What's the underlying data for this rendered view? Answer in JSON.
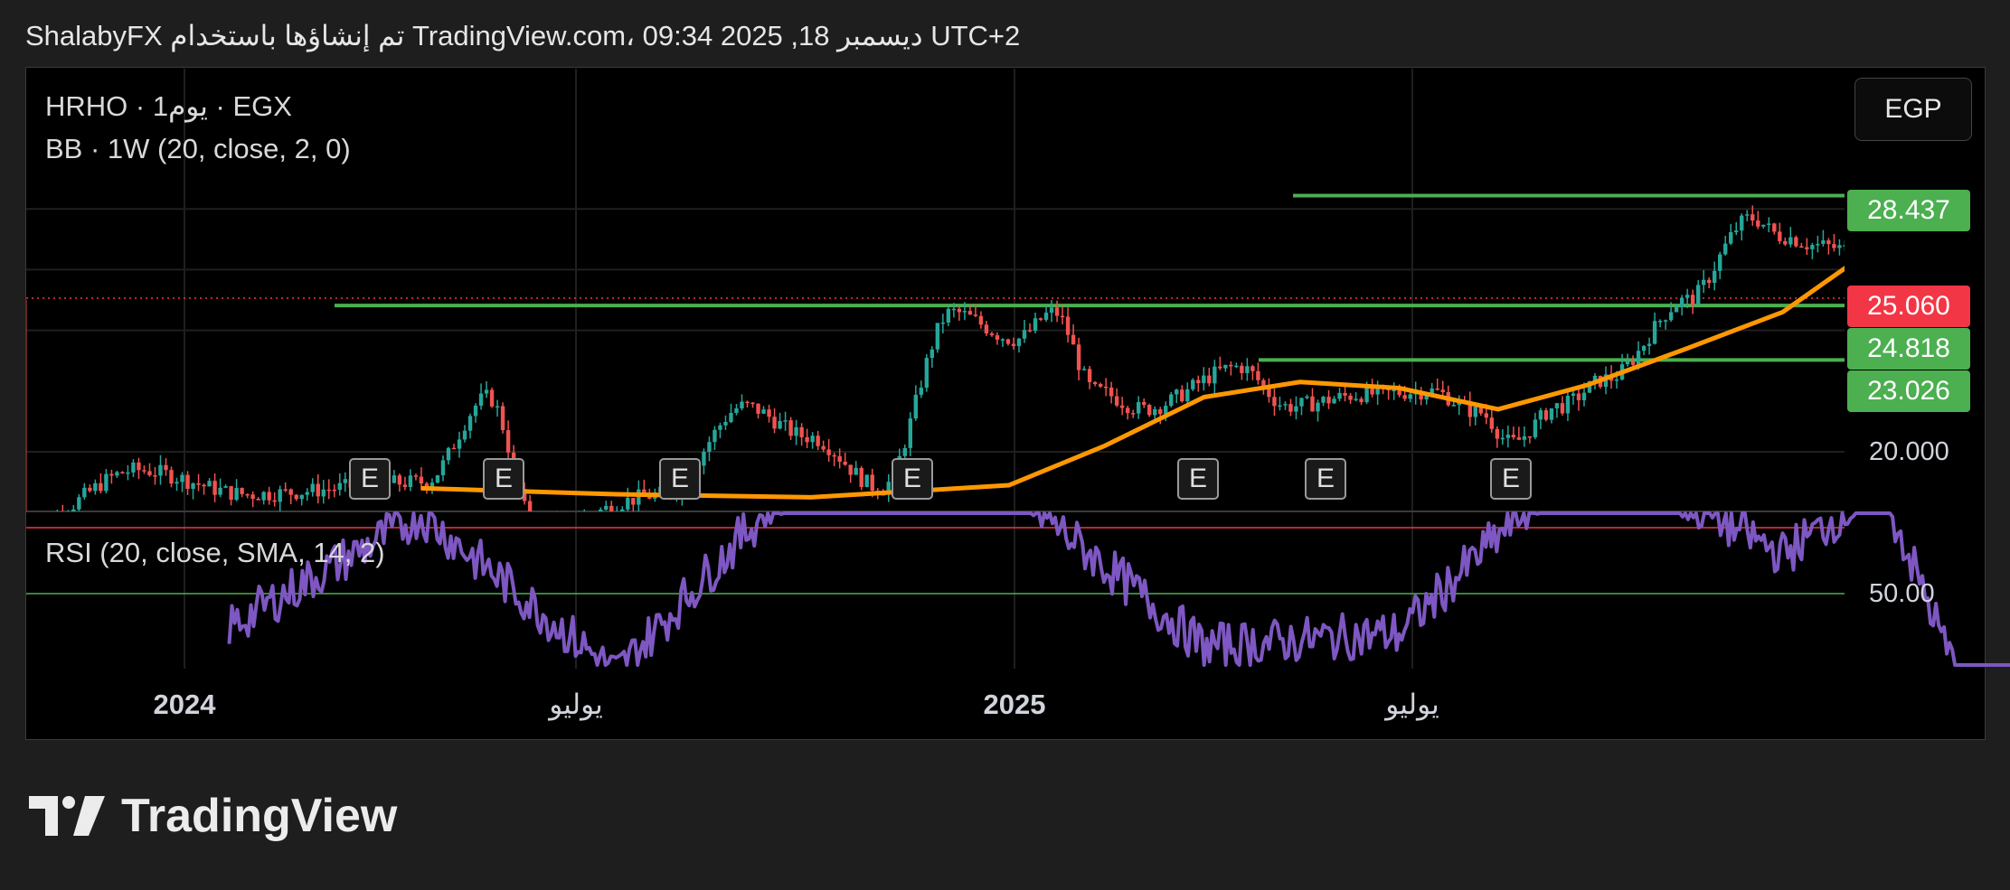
{
  "header": {
    "text": "ShalabyFX تم إنشاؤها باستخدام TradingView.com، 09:34 2025 ,18 ديسمبر UTC+2"
  },
  "legend": {
    "symbol_line": "HRHO · 1يوم · EGX",
    "indicator_line": "BB · 1W (20, close, 2, 0)",
    "rsi_line": "RSI (20, close, SMA, 14, 2)"
  },
  "currency": "EGP",
  "price_tags": [
    {
      "label": "28.437",
      "color": "#4caf50"
    },
    {
      "label": "25.060",
      "color": "#f23645"
    },
    {
      "label": "24.818",
      "color": "#4caf50"
    },
    {
      "label": "23.026",
      "color": "#4caf50"
    }
  ],
  "price_axis_label": "20.000",
  "rsi_axis_label": "50.00",
  "x_labels": [
    {
      "text": "2024",
      "bold": true
    },
    {
      "text": "يوليو",
      "bold": false
    },
    {
      "text": "2025",
      "bold": true
    },
    {
      "text": "يوليو",
      "bold": false
    }
  ],
  "earnings_badge": "E",
  "brand": {
    "name": "TradingView"
  },
  "colors": {
    "up": "#26a69a",
    "down": "#ef5350",
    "basis": "#ff9800",
    "rsi": "#7e57c2",
    "level_line": "#4caf50",
    "overbought": "#f23645",
    "oversold": "#4caf50"
  },
  "chart_data": {
    "type": "line",
    "title": "HRHO · 1يوم · EGX",
    "x_range": [
      "2023-11",
      "2025-12-18"
    ],
    "ylim": [
      18.5,
      31.5
    ],
    "horizontal_levels": [
      28.437,
      24.818,
      23.026
    ],
    "last_price": 25.06,
    "series": [
      {
        "name": "BB · 1W (20, close, 2, 0)",
        "x": [
          "2024-03",
          "2024-05",
          "2024-07",
          "2024-09",
          "2024-10",
          "2024-11",
          "2024-12",
          "2025-01",
          "2025-02",
          "2025-03",
          "2025-04",
          "2025-05",
          "2025-06",
          "2025-07",
          "2025-08",
          "2025-09",
          "2025-10",
          "2025-11",
          "2025-12"
        ],
        "values": [
          18.8,
          18.6,
          18.5,
          18.9,
          20.2,
          21.8,
          22.3,
          22.1,
          21.4,
          22.2,
          23.4,
          24.6,
          26.9,
          27.6,
          27.3,
          26.9,
          26.6,
          26.3,
          26.4
        ]
      },
      {
        "name": "RSI (20, close, SMA, 14, 2)",
        "x": [
          "2024-01",
          "2024-03",
          "2024-05",
          "2024-07",
          "2024-09",
          "2024-11",
          "2025-01",
          "2025-03",
          "2025-05",
          "2025-06",
          "2025-07",
          "2025-09",
          "2025-10",
          "2025-11",
          "2025-12"
        ],
        "values": [
          45,
          62,
          38,
          70,
          66,
          42,
          44,
          72,
          56,
          66,
          30,
          46,
          72,
          70,
          34
        ]
      }
    ],
    "rsi_levels": [
      60,
      50
    ],
    "earnings_markers": 7
  }
}
